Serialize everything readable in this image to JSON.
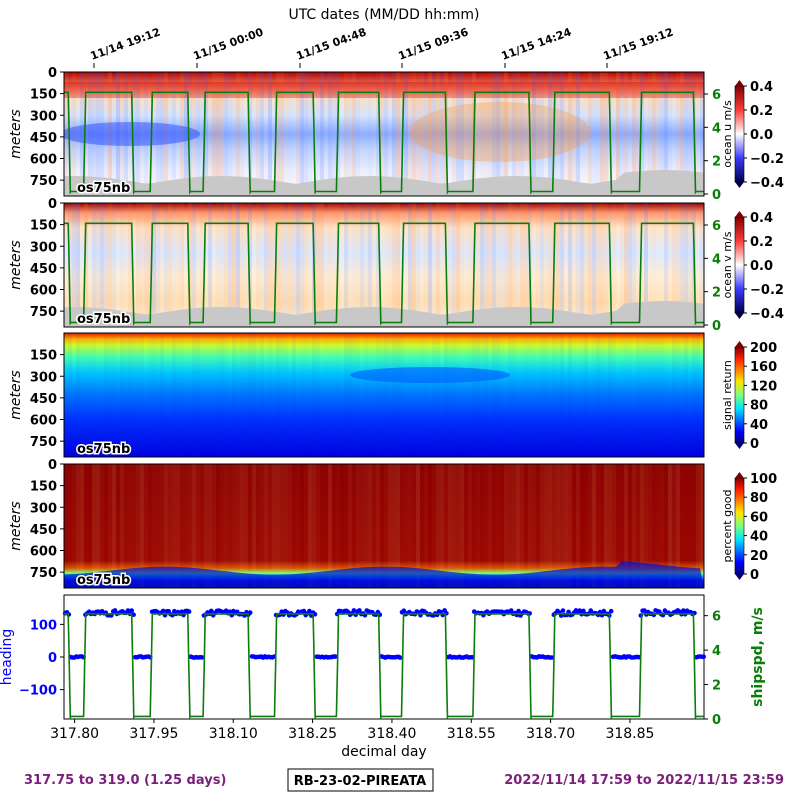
{
  "top_axis_title": "UTC dates (MM/DD hh:mm)",
  "top_ticks": [
    "11/14 19:12",
    "11/15 00:00",
    "11/15 04:48",
    "11/15 09:36",
    "11/15 14:24",
    "11/15 19:12"
  ],
  "instrument_tag": "os75nb",
  "footer": {
    "range": "317.75 to 319.0 (1.25 days)",
    "cruise": "RB-23-02-PIREATA",
    "dates": "2022/11/14 17:59 to 2022/11/15 23:59"
  },
  "chart_data": [
    {
      "type": "heatmap",
      "ylabel": "meters",
      "yticks": [
        "0",
        "150",
        "300",
        "450",
        "600",
        "750"
      ],
      "colorbar_label": "ocean u m/s",
      "colorbar_ticks": [
        "0.4",
        "0.2",
        "0.0",
        "−0.2",
        "−0.4"
      ],
      "clim": [
        -0.4,
        0.4
      ],
      "right_ticks": [
        "6",
        "4",
        "2",
        "0"
      ],
      "overlay": "ship speed",
      "colormap": "seismic"
    },
    {
      "type": "heatmap",
      "ylabel": "meters",
      "yticks": [
        "0",
        "150",
        "300",
        "450",
        "600",
        "750"
      ],
      "colorbar_label": "ocean v m/s",
      "colorbar_ticks": [
        "0.4",
        "0.2",
        "0.0",
        "−0.2",
        "−0.4"
      ],
      "clim": [
        -0.4,
        0.4
      ],
      "right_ticks": [
        "6",
        "4",
        "2",
        "0"
      ],
      "overlay": "ship speed",
      "colormap": "seismic"
    },
    {
      "type": "heatmap",
      "ylabel": "meters",
      "yticks": [
        "150",
        "300",
        "450",
        "600",
        "750"
      ],
      "colorbar_label": "signal return",
      "colorbar_ticks": [
        "200",
        "160",
        "120",
        "80",
        "40",
        "0"
      ],
      "clim": [
        0,
        200
      ],
      "colormap": "jet"
    },
    {
      "type": "heatmap",
      "ylabel": "meters",
      "yticks": [
        "0",
        "150",
        "300",
        "450",
        "600",
        "750"
      ],
      "colorbar_label": "percent good",
      "colorbar_ticks": [
        "100",
        "80",
        "60",
        "40",
        "20",
        "0"
      ],
      "clim": [
        0,
        100
      ],
      "colormap": "jet"
    },
    {
      "type": "line",
      "xlabel": "decimal day",
      "xticks": [
        "317.80",
        "317.95",
        "318.10",
        "318.25",
        "318.40",
        "318.55",
        "318.70",
        "318.85"
      ],
      "xlim": [
        317.78,
        318.99
      ],
      "left_label": "heading",
      "left_ticks": [
        "100",
        "0",
        "−100"
      ],
      "ylim_left": [
        -190,
        190
      ],
      "right_label": "shipspd, m/s",
      "right_ticks": [
        "6",
        "4",
        "2",
        "0"
      ],
      "ylim_right": [
        0,
        7.2
      ],
      "stations": [
        {
          "start": 317.792,
          "end": 317.817
        },
        {
          "start": 317.912,
          "end": 317.943
        },
        {
          "start": 318.018,
          "end": 318.043
        },
        {
          "start": 318.132,
          "end": 318.178
        },
        {
          "start": 318.255,
          "end": 318.295
        },
        {
          "start": 318.379,
          "end": 318.418
        },
        {
          "start": 318.505,
          "end": 318.553
        },
        {
          "start": 318.663,
          "end": 318.704
        },
        {
          "start": 318.815,
          "end": 318.868
        },
        {
          "start": 318.974,
          "end": 318.99
        }
      ],
      "transit_speed": 6.1,
      "heading_transit": 135,
      "heading_station": 0
    }
  ],
  "colors": {
    "heading": "#0000ff",
    "speed": "#0a7d0a",
    "footer": "#7a1f7a",
    "seafloor": "#c8c8c8"
  }
}
